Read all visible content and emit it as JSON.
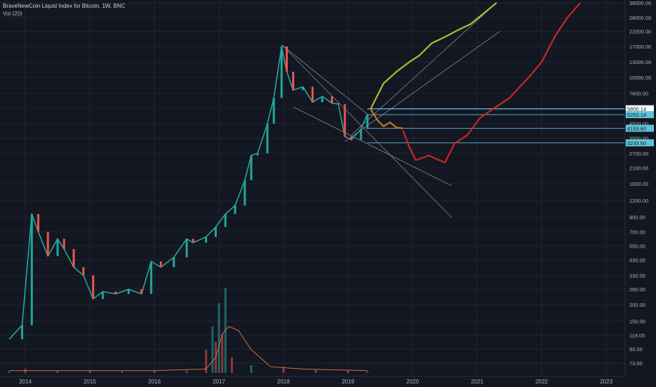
{
  "header": {
    "title": "BraveNewCoin Liquid Index for Bitcoin, 1W, BNC",
    "volume_indicator": "Vol (20)"
  },
  "colors": {
    "background": "#131722",
    "grid": "#1f2433",
    "axis_text": "#b2b5be",
    "candle_up": "#26a69a",
    "candle_down": "#ef5350",
    "projection_bull": "#b5b82a",
    "projection_mid": "#c47a1e",
    "projection_bear": "#c62828",
    "level_line": "#5fc2d6",
    "volume_ma": "#d8694a"
  },
  "chart_data": {
    "type": "line",
    "title": "BraveNewCoin Liquid Index for Bitcoin, 1W, BNC",
    "y_scale": "log",
    "x_tick_labels": [
      "2014",
      "2015",
      "2016",
      "2017",
      "2018",
      "2019",
      "2020",
      "2021",
      "2022",
      "2023"
    ],
    "y_tick_labels": [
      36000,
      28000,
      22000,
      17000,
      13000,
      10000,
      7600,
      5800,
      4500,
      3500,
      2700,
      2100,
      1600,
      1200,
      900,
      700,
      550,
      430,
      330,
      260,
      200,
      150,
      118,
      93,
      73
    ],
    "price_labels": [
      "5817.10",
      "5800.14",
      "5252.14",
      "4153.60",
      "3233.60"
    ],
    "series": [
      {
        "role": "price",
        "x": [
          2013.75,
          2013.95,
          2014.1,
          2014.2,
          2014.35,
          2014.5,
          2014.6,
          2014.75,
          2014.9,
          2015.05,
          2015.2,
          2015.4,
          2015.6,
          2015.8,
          2015.95,
          2016.1,
          2016.3,
          2016.5,
          2016.6,
          2016.8,
          2016.95,
          2017.1,
          2017.25,
          2017.4,
          2017.5,
          2017.6,
          2017.75,
          2017.85,
          2017.97,
          2018.05,
          2018.15,
          2018.3,
          2018.45,
          2018.6,
          2018.75,
          2018.85,
          2018.95,
          2019.05,
          2019.2,
          2019.3
        ],
        "y": [
          110,
          140,
          950,
          700,
          460,
          620,
          520,
          380,
          330,
          220,
          250,
          240,
          260,
          240,
          420,
          380,
          450,
          620,
          580,
          640,
          760,
          950,
          1100,
          1700,
          2600,
          2700,
          4500,
          7000,
          17000,
          11000,
          8000,
          8500,
          6500,
          7200,
          6400,
          6300,
          3600,
          3400,
          4100,
          5300
        ]
      },
      {
        "role": "projection-bull",
        "x": [
          2019.35,
          2019.55,
          2019.75,
          2019.95,
          2020.1,
          2020.3,
          2020.5,
          2020.7,
          2020.9,
          2021.1,
          2021.3
        ],
        "y": [
          5800,
          9000,
          11000,
          13000,
          14500,
          18000,
          20000,
          22500,
          25000,
          30000,
          36000
        ]
      },
      {
        "role": "projection-mid",
        "x": [
          2019.35,
          2019.45,
          2019.55,
          2019.65,
          2019.75,
          2019.85
        ],
        "y": [
          5800,
          4800,
          4300,
          4600,
          4200,
          4150
        ]
      },
      {
        "role": "projection-bear",
        "x": [
          2019.85,
          2019.95,
          2020.05,
          2020.25,
          2020.5,
          2020.65,
          2020.85,
          2021.05,
          2021.25,
          2021.5,
          2021.8,
          2022.0,
          2022.2,
          2022.4,
          2022.6
        ],
        "y": [
          4000,
          3000,
          2400,
          2600,
          2300,
          3200,
          3700,
          5000,
          5800,
          7000,
          10000,
          13000,
          20000,
          28000,
          36000
        ]
      }
    ],
    "volume_series": {
      "x": [
        2013.75,
        2014.0,
        2014.5,
        2015.0,
        2015.5,
        2016.0,
        2016.5,
        2016.8,
        2016.9,
        2016.95,
        2017.0,
        2017.05,
        2017.1,
        2017.2,
        2017.5,
        2018.0,
        2018.5,
        2019.0,
        2019.3
      ],
      "y": [
        2,
        5,
        3,
        4,
        2,
        3,
        3,
        30,
        60,
        40,
        90,
        50,
        110,
        20,
        10,
        8,
        5,
        3,
        2
      ]
    },
    "grid": true
  }
}
